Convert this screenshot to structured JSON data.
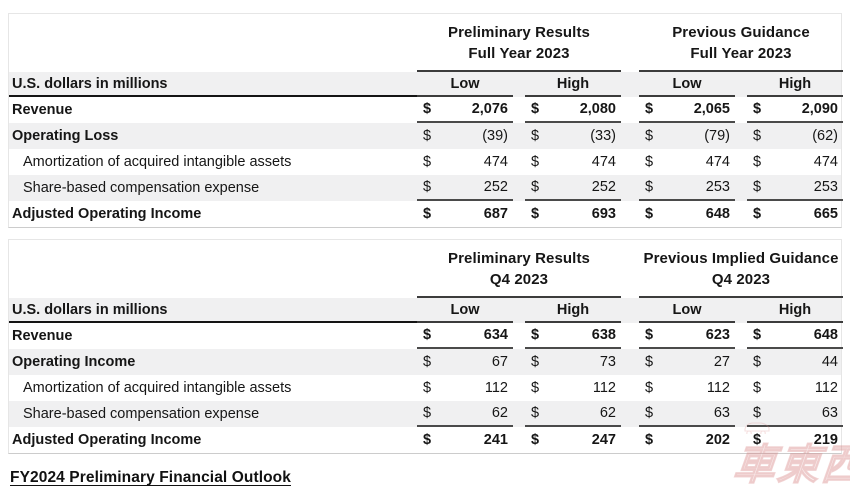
{
  "tables": [
    {
      "groups": [
        {
          "line1": "Preliminary Results",
          "line2": "Full Year 2023"
        },
        {
          "line1": "Previous Guidance",
          "line2": "Full Year 2023"
        }
      ],
      "units_label": "U.S. dollars in millions",
      "col_headers": [
        "Low",
        "High",
        "Low",
        "High"
      ],
      "currency": "$",
      "rows": [
        {
          "label": "Revenue",
          "values": [
            "2,076",
            "2,080",
            "2,065",
            "2,090"
          ]
        },
        {
          "label": "Operating Loss",
          "values": [
            "(39)",
            "(33)",
            "(79)",
            "(62)"
          ]
        },
        {
          "label": "Amortization of acquired intangible assets",
          "values": [
            "474",
            "474",
            "474",
            "474"
          ]
        },
        {
          "label": "Share-based compensation expense",
          "values": [
            "252",
            "252",
            "253",
            "253"
          ]
        },
        {
          "label": "Adjusted Operating Income",
          "values": [
            "687",
            "693",
            "648",
            "665"
          ]
        }
      ]
    },
    {
      "groups": [
        {
          "line1": "Preliminary Results",
          "line2": "Q4 2023"
        },
        {
          "line1": "Previous Implied Guidance",
          "line2": "Q4 2023"
        }
      ],
      "units_label": "U.S. dollars in millions",
      "col_headers": [
        "Low",
        "High",
        "Low",
        "High"
      ],
      "currency": "$",
      "rows": [
        {
          "label": "Revenue",
          "values": [
            "634",
            "638",
            "623",
            "648"
          ]
        },
        {
          "label": "Operating Income",
          "values": [
            "67",
            "73",
            "27",
            "44"
          ]
        },
        {
          "label": "Amortization of acquired intangible assets",
          "values": [
            "112",
            "112",
            "112",
            "112"
          ]
        },
        {
          "label": "Share-based compensation expense",
          "values": [
            "62",
            "62",
            "63",
            "63"
          ]
        },
        {
          "label": "Adjusted Operating Income",
          "values": [
            "241",
            "247",
            "202",
            "219"
          ]
        }
      ]
    }
  ],
  "footer": {
    "link_label": "FY2024 Preliminary Financial Outlook"
  },
  "watermark": {
    "text": "車東西",
    "color": "#d88686"
  },
  "colors": {
    "row_shade": "#f0f0f1",
    "rule_dark": "#141414",
    "rule_mid": "#3c3c3c",
    "text": "#161616"
  }
}
